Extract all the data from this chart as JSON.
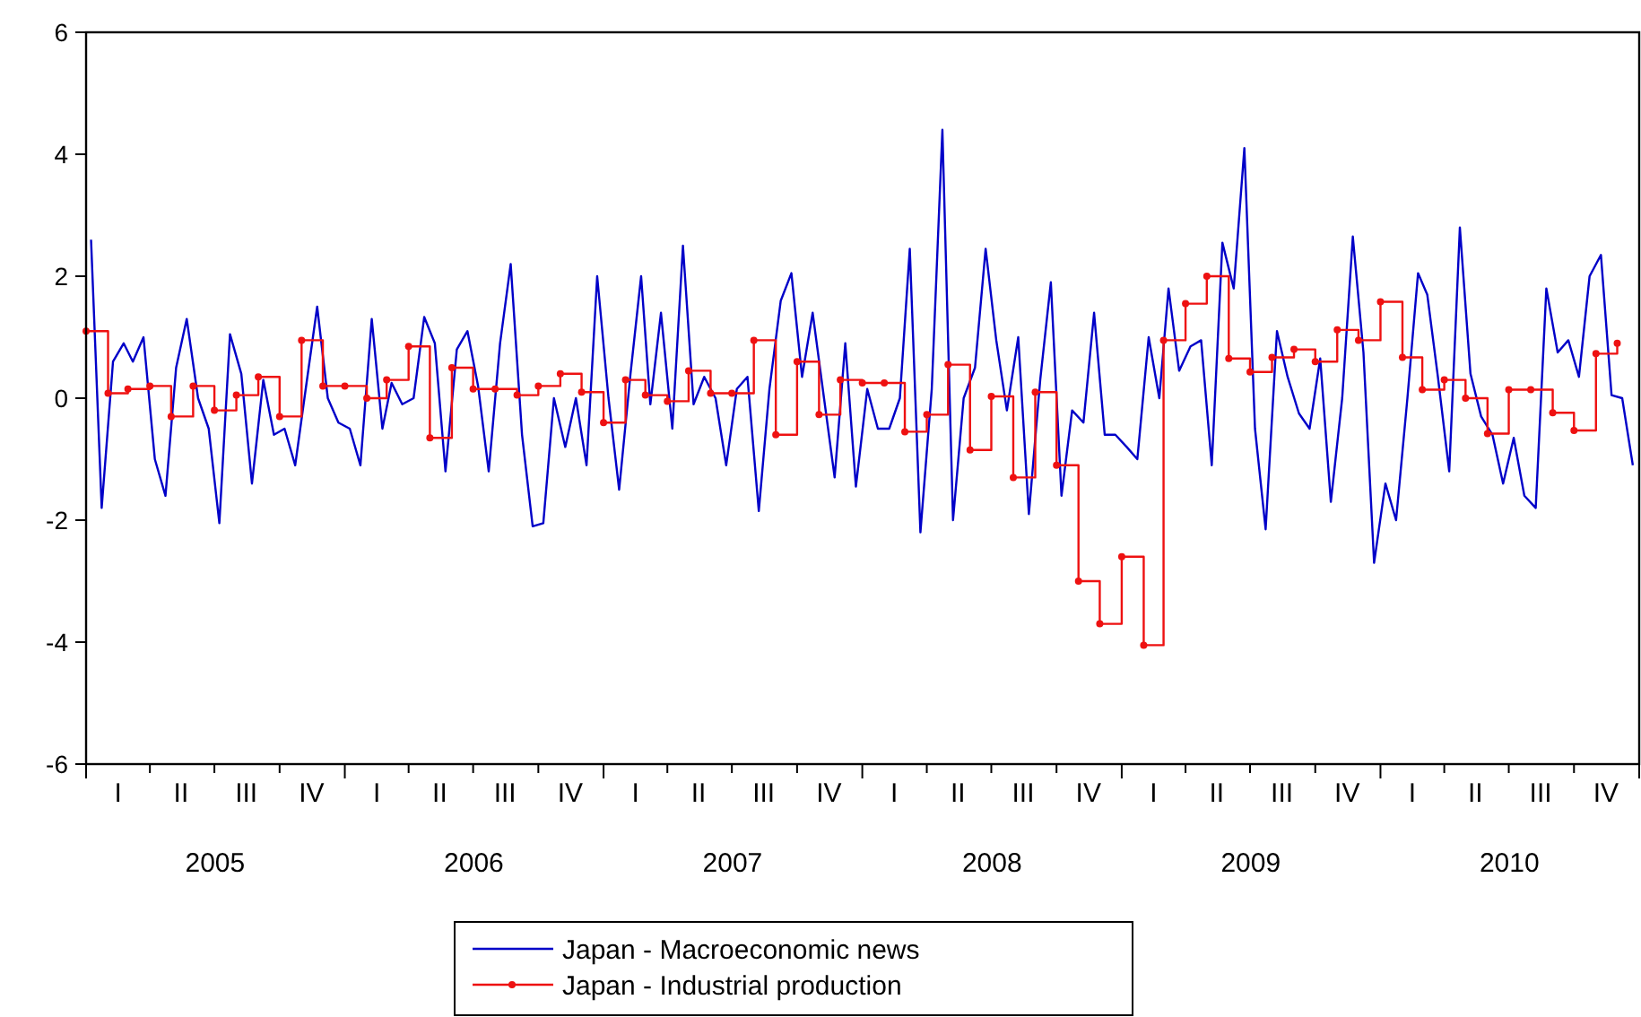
{
  "chart_data": {
    "type": "line",
    "xlim": [
      "2005-01-01",
      "2011-01-01"
    ],
    "ylim": [
      -6,
      6
    ],
    "yticks": [
      -6,
      -4,
      -2,
      0,
      2,
      4,
      6
    ],
    "xticks": [
      {
        "value": "2005-01-01",
        "label": null
      },
      {
        "value": "2005-04-01",
        "label": null
      },
      {
        "value": "2005-07-01",
        "label": null
      },
      {
        "value": "2005-10-01",
        "label": null
      },
      {
        "value": "2006-01-01",
        "label": null
      },
      {
        "value": "2006-04-01",
        "label": null
      },
      {
        "value": "2006-07-01",
        "label": null
      },
      {
        "value": "2006-10-01",
        "label": null
      },
      {
        "value": "2007-01-01",
        "label": null
      },
      {
        "value": "2007-04-01",
        "label": null
      },
      {
        "value": "2007-07-01",
        "label": null
      },
      {
        "value": "2007-10-01",
        "label": null
      },
      {
        "value": "2008-01-01",
        "label": null
      },
      {
        "value": "2008-04-01",
        "label": null
      },
      {
        "value": "2008-07-01",
        "label": null
      },
      {
        "value": "2008-10-01",
        "label": null
      },
      {
        "value": "2009-01-01",
        "label": null
      },
      {
        "value": "2009-04-01",
        "label": null
      },
      {
        "value": "2009-07-01",
        "label": null
      },
      {
        "value": "2009-10-01",
        "label": null
      },
      {
        "value": "2010-01-01",
        "label": null
      },
      {
        "value": "2010-04-01",
        "label": null
      },
      {
        "value": "2010-07-01",
        "label": null
      },
      {
        "value": "2010-10-01",
        "label": null
      },
      {
        "value": "2011-01-01",
        "label": null
      },
      {
        "value": "2005-07-02",
        "label": "2005"
      },
      {
        "value": "2006-07-02",
        "label": "2006"
      },
      {
        "value": "2007-07-02",
        "label": "2007"
      },
      {
        "value": "2008-07-02",
        "label": "2008"
      },
      {
        "value": "2009-07-02",
        "label": "2009"
      },
      {
        "value": "2010-07-02",
        "label": "2010"
      }
    ],
    "annotations": [
      "I",
      "II",
      "III",
      "IV",
      "I",
      "II",
      "III",
      "IV",
      "I",
      "II",
      "III",
      "IV",
      "I",
      "II",
      "III",
      "IV",
      "I",
      "II",
      "III",
      "IV",
      "I",
      "II",
      "III",
      "IV"
    ],
    "legend": "bottom",
    "series": [
      {
        "name": "Japan - Macroeconomic news",
        "color": "#0000c8",
        "x": [
          "2005-01-08",
          "2005-01-23",
          "2005-02-08",
          "2005-02-23",
          "2005-03-08",
          "2005-03-23",
          "2005-04-08",
          "2005-04-23",
          "2005-05-08",
          "2005-05-23",
          "2005-06-08",
          "2005-06-23",
          "2005-07-08",
          "2005-07-23",
          "2005-08-08",
          "2005-08-23",
          "2005-09-08",
          "2005-09-23",
          "2005-10-08",
          "2005-10-23",
          "2005-11-08",
          "2005-11-23",
          "2005-12-08",
          "2005-12-23",
          "2006-01-08",
          "2006-01-23",
          "2006-02-08",
          "2006-02-23",
          "2006-03-08",
          "2006-03-23",
          "2006-04-08",
          "2006-04-23",
          "2006-05-08",
          "2006-05-23",
          "2006-06-08",
          "2006-06-23",
          "2006-07-08",
          "2006-07-23",
          "2006-08-08",
          "2006-08-23",
          "2006-09-08",
          "2006-09-23",
          "2006-10-08",
          "2006-10-23",
          "2006-11-08",
          "2006-11-23",
          "2006-12-08",
          "2006-12-23",
          "2007-01-08",
          "2007-01-23",
          "2007-02-08",
          "2007-02-23",
          "2007-03-08",
          "2007-03-23",
          "2007-04-08",
          "2007-04-23",
          "2007-05-08",
          "2007-05-23",
          "2007-06-08",
          "2007-06-23",
          "2007-07-08",
          "2007-07-23",
          "2007-08-08",
          "2007-08-23",
          "2007-09-08",
          "2007-09-23",
          "2007-10-08",
          "2007-10-23",
          "2007-11-08",
          "2007-11-23",
          "2007-12-08",
          "2007-12-23",
          "2008-01-08",
          "2008-01-23",
          "2008-02-08",
          "2008-02-23",
          "2008-03-08",
          "2008-03-23",
          "2008-04-08",
          "2008-04-23",
          "2008-05-08",
          "2008-05-23",
          "2008-06-08",
          "2008-06-23",
          "2008-07-08",
          "2008-07-23",
          "2008-08-08",
          "2008-08-23",
          "2008-09-08",
          "2008-09-23",
          "2008-10-08",
          "2008-10-23",
          "2008-11-08",
          "2008-11-23",
          "2008-12-08",
          "2008-12-23",
          "2009-01-08",
          "2009-01-23",
          "2009-02-08",
          "2009-02-23",
          "2009-03-08",
          "2009-03-23",
          "2009-04-08",
          "2009-04-23",
          "2009-05-08",
          "2009-05-23",
          "2009-06-08",
          "2009-06-23",
          "2009-07-08",
          "2009-07-23",
          "2009-08-08",
          "2009-08-23",
          "2009-09-08",
          "2009-09-23",
          "2009-10-08",
          "2009-10-23",
          "2009-11-08",
          "2009-11-23",
          "2009-12-08",
          "2009-12-23",
          "2010-01-08",
          "2010-01-23",
          "2010-02-08",
          "2010-02-23",
          "2010-03-08",
          "2010-03-23",
          "2010-04-08",
          "2010-04-23",
          "2010-05-08",
          "2010-05-23",
          "2010-06-08",
          "2010-06-23",
          "2010-07-08",
          "2010-07-23",
          "2010-08-08",
          "2010-08-23",
          "2010-09-08",
          "2010-09-23",
          "2010-10-08",
          "2010-10-23",
          "2010-11-08",
          "2010-11-23",
          "2010-12-08",
          "2010-12-23"
        ],
        "values": [
          2.6,
          -1.8,
          0.6,
          0.9,
          0.6,
          1.0,
          -1.0,
          -1.6,
          0.5,
          1.3,
          0.0,
          -0.5,
          -2.05,
          1.05,
          0.4,
          -1.4,
          0.3,
          -0.6,
          -0.5,
          -1.1,
          0.25,
          1.5,
          0.0,
          -0.4,
          -0.5,
          -1.1,
          1.3,
          -0.5,
          0.25,
          -0.1,
          0.0,
          1.33,
          0.9,
          -1.2,
          0.8,
          1.1,
          0.2,
          -1.2,
          0.9,
          2.2,
          -0.6,
          -2.1,
          -2.05,
          0.0,
          -0.8,
          0.0,
          -1.1,
          2.0,
          0.0,
          -1.5,
          0.4,
          2.0,
          -0.1,
          1.4,
          -0.5,
          2.5,
          -0.1,
          0.35,
          0.0,
          -1.1,
          0.15,
          0.35,
          -1.85,
          0.15,
          1.6,
          2.05,
          0.35,
          1.4,
          0.0,
          -1.3,
          0.9,
          -1.45,
          0.15,
          -0.5,
          -0.5,
          0.0,
          2.45,
          -2.2,
          0.15,
          4.4,
          -2.0,
          0.0,
          0.5,
          2.45,
          0.95,
          -0.2,
          1.0,
          -1.9,
          0.3,
          1.9,
          -1.6,
          -0.2,
          -0.4,
          1.4,
          -0.6,
          -0.6,
          -0.8,
          -1.0,
          1.0,
          0.0,
          1.8,
          0.45,
          0.85,
          0.95,
          -1.1,
          2.55,
          1.8,
          4.1,
          -0.5,
          -2.15,
          1.1,
          0.35,
          -0.25,
          -0.5,
          0.65,
          -1.7,
          0.0,
          2.65,
          0.75,
          -2.7,
          -1.4,
          -2.0,
          0.0,
          2.05,
          1.7,
          0.35,
          -1.2,
          2.8,
          0.4,
          -0.3,
          -0.6,
          -1.4,
          -0.65,
          -1.6,
          -1.8,
          1.8,
          0.75,
          0.95,
          0.35,
          2.0,
          2.35,
          0.05,
          0.0,
          -1.1
        ]
      },
      {
        "name": "Japan - Industrial production",
        "type": "step",
        "color": "#ee1111",
        "marker": "circle",
        "x": [
          "2005-01",
          "2005-02",
          "2005-03",
          "2005-04",
          "2005-05",
          "2005-06",
          "2005-07",
          "2005-08",
          "2005-09",
          "2005-10",
          "2005-11",
          "2005-12",
          "2006-01",
          "2006-02",
          "2006-03",
          "2006-04",
          "2006-05",
          "2006-06",
          "2006-07",
          "2006-08",
          "2006-09",
          "2006-10",
          "2006-11",
          "2006-12",
          "2007-01",
          "2007-02",
          "2007-03",
          "2007-04",
          "2007-05",
          "2007-06",
          "2007-07",
          "2007-08",
          "2007-09",
          "2007-10",
          "2007-11",
          "2007-12",
          "2008-01",
          "2008-02",
          "2008-03",
          "2008-04",
          "2008-05",
          "2008-06",
          "2008-07",
          "2008-08",
          "2008-09",
          "2008-10",
          "2008-11",
          "2008-12",
          "2009-01",
          "2009-02",
          "2009-03",
          "2009-04",
          "2009-05",
          "2009-06",
          "2009-07",
          "2009-08",
          "2009-09",
          "2009-10",
          "2009-11",
          "2009-12",
          "2010-01",
          "2010-02",
          "2010-03",
          "2010-04",
          "2010-05",
          "2010-06",
          "2010-07",
          "2010-08",
          "2010-09",
          "2010-10",
          "2010-11",
          "2010-12"
        ],
        "values": [
          1.1,
          0.08,
          0.15,
          0.2,
          -0.3,
          0.2,
          -0.2,
          0.05,
          0.35,
          -0.3,
          0.95,
          0.2,
          0.2,
          0.0,
          0.3,
          0.85,
          -0.65,
          0.5,
          0.15,
          0.15,
          0.05,
          0.2,
          0.4,
          0.1,
          -0.4,
          0.3,
          0.05,
          -0.05,
          0.45,
          0.08,
          0.08,
          0.95,
          -0.6,
          0.6,
          -0.27,
          0.3,
          0.25,
          0.25,
          -0.55,
          -0.27,
          0.55,
          -0.85,
          0.03,
          -1.3,
          0.1,
          -1.1,
          -3.0,
          -3.7,
          -2.6,
          -4.05,
          0.95,
          1.55,
          2.0,
          0.65,
          0.43,
          0.67,
          0.8,
          0.6,
          1.12,
          0.95,
          1.58,
          0.67,
          0.14,
          0.3,
          0.0,
          -0.58,
          0.14,
          0.14,
          -0.24,
          -0.53,
          0.73,
          0.9
        ]
      }
    ]
  }
}
